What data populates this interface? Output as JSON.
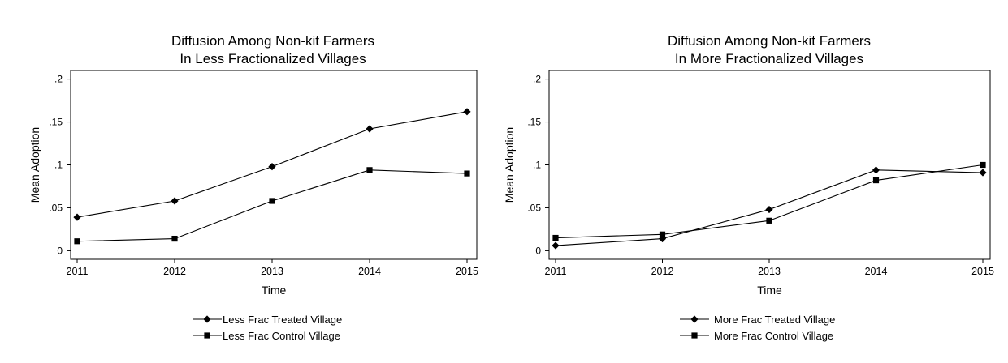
{
  "chart_data": [
    {
      "type": "line",
      "title": [
        "Diffusion Among Non-kit Farmers",
        "In Less Fractionalized Villages"
      ],
      "xlabel": "Time",
      "ylabel": "Mean Adoption",
      "x": [
        2011,
        2012,
        2013,
        2014,
        2015
      ],
      "x_tick_labels": [
        "2011",
        "2012",
        "2013",
        "2014",
        "2015"
      ],
      "y_ticks": [
        0,
        0.05,
        0.1,
        0.15,
        0.2
      ],
      "y_tick_labels": [
        "0",
        ".05",
        ".1",
        ".15",
        ".2"
      ],
      "ylim": [
        -0.01,
        0.21
      ],
      "grid": false,
      "legend_position": "bottom",
      "series": [
        {
          "name": "Less Frac Treated Village",
          "marker": "diamond",
          "values": [
            0.039,
            0.058,
            0.098,
            0.142,
            0.162
          ]
        },
        {
          "name": "Less Frac Control Village",
          "marker": "square",
          "values": [
            0.011,
            0.014,
            0.058,
            0.094,
            0.09
          ]
        }
      ]
    },
    {
      "type": "line",
      "title": [
        "Diffusion Among Non-kit Farmers",
        "In More Fractionalized Villages"
      ],
      "xlabel": "Time",
      "ylabel": "Mean Adoption",
      "x": [
        2011,
        2012,
        2013,
        2014,
        2015
      ],
      "x_tick_labels": [
        "2011",
        "2012",
        "2013",
        "2014",
        "2015"
      ],
      "y_ticks": [
        0,
        0.05,
        0.1,
        0.15,
        0.2
      ],
      "y_tick_labels": [
        "0",
        ".05",
        ".1",
        ".15",
        ".2"
      ],
      "ylim": [
        -0.01,
        0.21
      ],
      "grid": false,
      "legend_position": "bottom",
      "series": [
        {
          "name": "More Frac Treated Village",
          "marker": "diamond",
          "values": [
            0.006,
            0.014,
            0.048,
            0.094,
            0.091
          ]
        },
        {
          "name": "More Frac Control Village",
          "marker": "square",
          "values": [
            0.015,
            0.019,
            0.035,
            0.082,
            0.1
          ]
        }
      ]
    }
  ]
}
